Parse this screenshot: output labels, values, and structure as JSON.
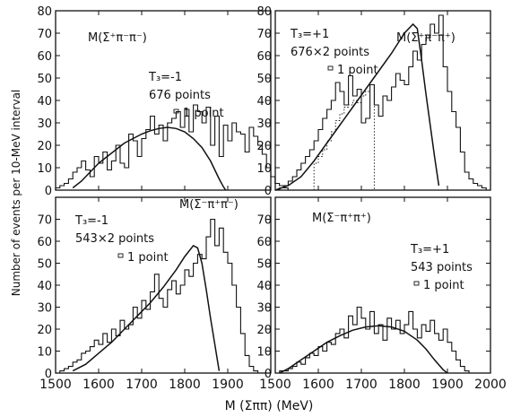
{
  "figure": {
    "y_axis_label": "Number of events per 10-MeV interval",
    "x_axis_label": "M (Σππ) (MeV)"
  },
  "chart_data": [
    {
      "type": "histogram",
      "title": "M(Σ⁺π⁻π⁻)",
      "annotations": [
        "T₃=-1",
        "676 points",
        "1 point"
      ],
      "xlim": [
        1500,
        2000
      ],
      "ylim": [
        0,
        80
      ],
      "xticks": [
        1500,
        1600,
        1700,
        1800,
        1900
      ],
      "yticks": [
        0,
        10,
        20,
        30,
        40,
        50,
        60,
        70,
        80
      ],
      "grid": false,
      "bins": {
        "start": 1500,
        "width": 10,
        "counts": [
          1,
          2,
          3,
          5,
          8,
          10,
          13,
          9,
          6,
          15,
          12,
          17,
          9,
          13,
          20,
          12,
          10,
          25,
          22,
          15,
          23,
          27,
          33,
          25,
          29,
          22,
          30,
          32,
          35,
          28,
          36,
          26,
          38,
          35,
          30,
          37,
          20,
          33,
          15,
          29,
          22,
          30,
          26,
          25,
          17,
          28,
          24,
          20,
          16,
          10,
          6,
          3,
          2,
          1
        ]
      },
      "fit_curve": {
        "x": [
          1540,
          1560,
          1580,
          1600,
          1620,
          1640,
          1660,
          1680,
          1700,
          1720,
          1740,
          1760,
          1780,
          1800,
          1820,
          1840,
          1860,
          1870,
          1880,
          1890,
          1895
        ],
        "y": [
          1,
          4,
          8,
          12,
          15,
          18,
          21,
          23,
          25,
          26.5,
          27.5,
          28,
          27.5,
          26,
          23,
          19,
          13,
          9,
          5,
          1.5,
          0
        ]
      }
    },
    {
      "type": "histogram",
      "title": "M(Σ⁺π⁻π⁺)",
      "annotations": [
        "T₃=+1",
        "676×2 points",
        "1 point"
      ],
      "xlim": [
        1500,
        2000
      ],
      "ylim": [
        0,
        80
      ],
      "xticks": [
        1500,
        1600,
        1700,
        1800,
        1900,
        2000
      ],
      "yticks": [
        0,
        10,
        20,
        30,
        40,
        50,
        60,
        70,
        80
      ],
      "grid": false,
      "bins": {
        "start": 1500,
        "width": 10,
        "counts": [
          0,
          1,
          2,
          4,
          6,
          9,
          12,
          15,
          18,
          22,
          27,
          32,
          36,
          40,
          48,
          44,
          38,
          51,
          42,
          45,
          30,
          32,
          47,
          38,
          33,
          42,
          40,
          46,
          52,
          49,
          47,
          55,
          62,
          58,
          65,
          68,
          74,
          70,
          78,
          55,
          44,
          35,
          28,
          17,
          8,
          5,
          3,
          2,
          1,
          0
        ]
      },
      "dotted_steps": {
        "start": 1590,
        "width": 10,
        "counts": [
          12,
          15,
          18,
          22,
          26,
          31,
          34,
          37,
          38,
          40,
          39,
          42,
          44,
          47
        ]
      },
      "fit_curve": {
        "x": [
          1500,
          1530,
          1560,
          1590,
          1620,
          1650,
          1680,
          1710,
          1740,
          1770,
          1800,
          1820,
          1830,
          1840,
          1850,
          1860,
          1870,
          1880
        ],
        "y": [
          0,
          2,
          6,
          13,
          21,
          29,
          37,
          45,
          53,
          61,
          70,
          74,
          72,
          58,
          43,
          29,
          15,
          2
        ]
      }
    },
    {
      "type": "histogram",
      "title": "M(Σ⁻π⁺π⁻)",
      "annotations": [
        "T₃=-1",
        "543×2 points",
        "1 point"
      ],
      "xlim": [
        1500,
        2000
      ],
      "ylim": [
        0,
        80
      ],
      "xticks": [
        1500,
        1600,
        1700,
        1800,
        1900
      ],
      "yticks": [
        0,
        10,
        20,
        30,
        40,
        50,
        60,
        70
      ],
      "grid": false,
      "bins": {
        "start": 1500,
        "width": 10,
        "counts": [
          0,
          1,
          2,
          3,
          5,
          6,
          9,
          10,
          12,
          15,
          13,
          18,
          14,
          20,
          17,
          24,
          20,
          22,
          30,
          25,
          33,
          29,
          37,
          45,
          34,
          30,
          38,
          42,
          36,
          40,
          47,
          44,
          50,
          54,
          52,
          62,
          70,
          58,
          66,
          55,
          50,
          40,
          30,
          18,
          8,
          3,
          1,
          0
        ]
      },
      "fit_curve": {
        "x": [
          1540,
          1570,
          1600,
          1630,
          1660,
          1690,
          1720,
          1750,
          1780,
          1800,
          1820,
          1830,
          1840,
          1850,
          1860,
          1870,
          1880
        ],
        "y": [
          1,
          4,
          9,
          14,
          20,
          26,
          32,
          39,
          47,
          53,
          58,
          57,
          50,
          38,
          25,
          13,
          1
        ]
      }
    },
    {
      "type": "histogram",
      "title": "M(Σ⁻π⁺π⁺)",
      "annotations": [
        "T₃=+1",
        "543 points",
        "1 point"
      ],
      "xlim": [
        1500,
        2000
      ],
      "ylim": [
        0,
        80
      ],
      "xticks": [
        1500,
        1600,
        1700,
        1800,
        1900,
        2000
      ],
      "yticks": [
        0,
        10,
        20,
        30,
        40,
        50,
        60,
        70
      ],
      "grid": false,
      "bins": {
        "start": 1500,
        "width": 10,
        "counts": [
          0,
          1,
          1,
          2,
          3,
          5,
          4,
          7,
          9,
          8,
          12,
          10,
          14,
          13,
          18,
          20,
          16,
          26,
          22,
          30,
          25,
          20,
          28,
          18,
          22,
          15,
          25,
          20,
          24,
          18,
          22,
          28,
          20,
          16,
          22,
          19,
          24,
          18,
          15,
          20,
          14,
          10,
          6,
          3,
          1,
          0
        ]
      },
      "fit_curve": {
        "x": [
          1510,
          1530,
          1560,
          1590,
          1620,
          1650,
          1680,
          1710,
          1740,
          1770,
          1800,
          1830,
          1850,
          1870,
          1890,
          1900
        ],
        "y": [
          0,
          2,
          6,
          10,
          14,
          17,
          19.5,
          21,
          21.5,
          21,
          19,
          15,
          11,
          6,
          1.5,
          0
        ]
      }
    }
  ]
}
